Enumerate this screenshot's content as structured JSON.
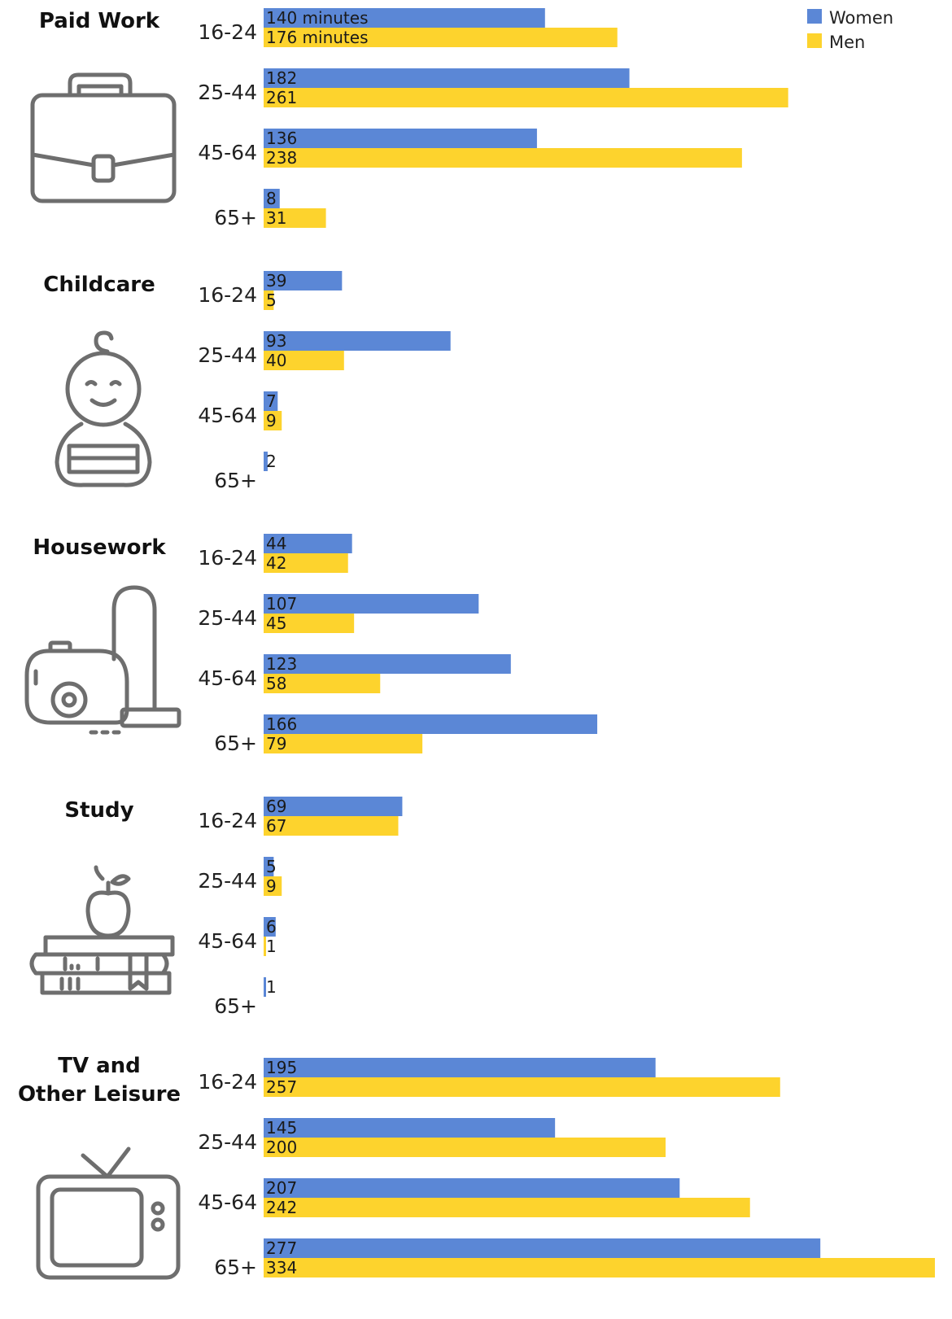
{
  "chart_data": {
    "type": "bar",
    "orientation": "horizontal",
    "legend": {
      "placement": "top-right",
      "entries": [
        {
          "name": "Women",
          "color": "#5b87d6"
        },
        {
          "name": "Men",
          "color": "#fdd32d"
        }
      ]
    },
    "units_label": "minutes",
    "xlim": [
      0,
      334
    ],
    "grid": false,
    "groups": [
      {
        "title_lines": [
          "Paid Work"
        ],
        "icon": "briefcase-icon",
        "rows": [
          {
            "age": "16-24",
            "women": 140,
            "men": 176
          },
          {
            "age": "25-44",
            "women": 182,
            "men": 261
          },
          {
            "age": "45-64",
            "women": 136,
            "men": 238
          },
          {
            "age": "65+",
            "women": 8,
            "men": 31
          }
        ]
      },
      {
        "title_lines": [
          "Childcare"
        ],
        "icon": "baby-icon",
        "rows": [
          {
            "age": "16-24",
            "women": 39,
            "men": 5
          },
          {
            "age": "25-44",
            "women": 93,
            "men": 40
          },
          {
            "age": "45-64",
            "women": 7,
            "men": 9
          },
          {
            "age": "65+",
            "women": 2,
            "men": null
          }
        ]
      },
      {
        "title_lines": [
          "Housework"
        ],
        "icon": "vacuum-cleaner-icon",
        "rows": [
          {
            "age": "16-24",
            "women": 44,
            "men": 42
          },
          {
            "age": "25-44",
            "women": 107,
            "men": 45
          },
          {
            "age": "45-64",
            "women": 123,
            "men": 58
          },
          {
            "age": "65+",
            "women": 166,
            "men": 79
          }
        ]
      },
      {
        "title_lines": [
          "Study"
        ],
        "icon": "apple-on-books-icon",
        "rows": [
          {
            "age": "16-24",
            "women": 69,
            "men": 67
          },
          {
            "age": "25-44",
            "women": 5,
            "men": 9
          },
          {
            "age": "45-64",
            "women": 6,
            "men": 1
          },
          {
            "age": "65+",
            "women": 1,
            "men": null
          }
        ]
      },
      {
        "title_lines": [
          "TV and",
          "Other Leisure"
        ],
        "icon": "television-icon",
        "rows": [
          {
            "age": "16-24",
            "women": 195,
            "men": 257
          },
          {
            "age": "25-44",
            "women": 145,
            "men": 200
          },
          {
            "age": "45-64",
            "women": 207,
            "men": 242
          },
          {
            "age": "65+",
            "women": 277,
            "men": 334
          }
        ]
      }
    ]
  }
}
